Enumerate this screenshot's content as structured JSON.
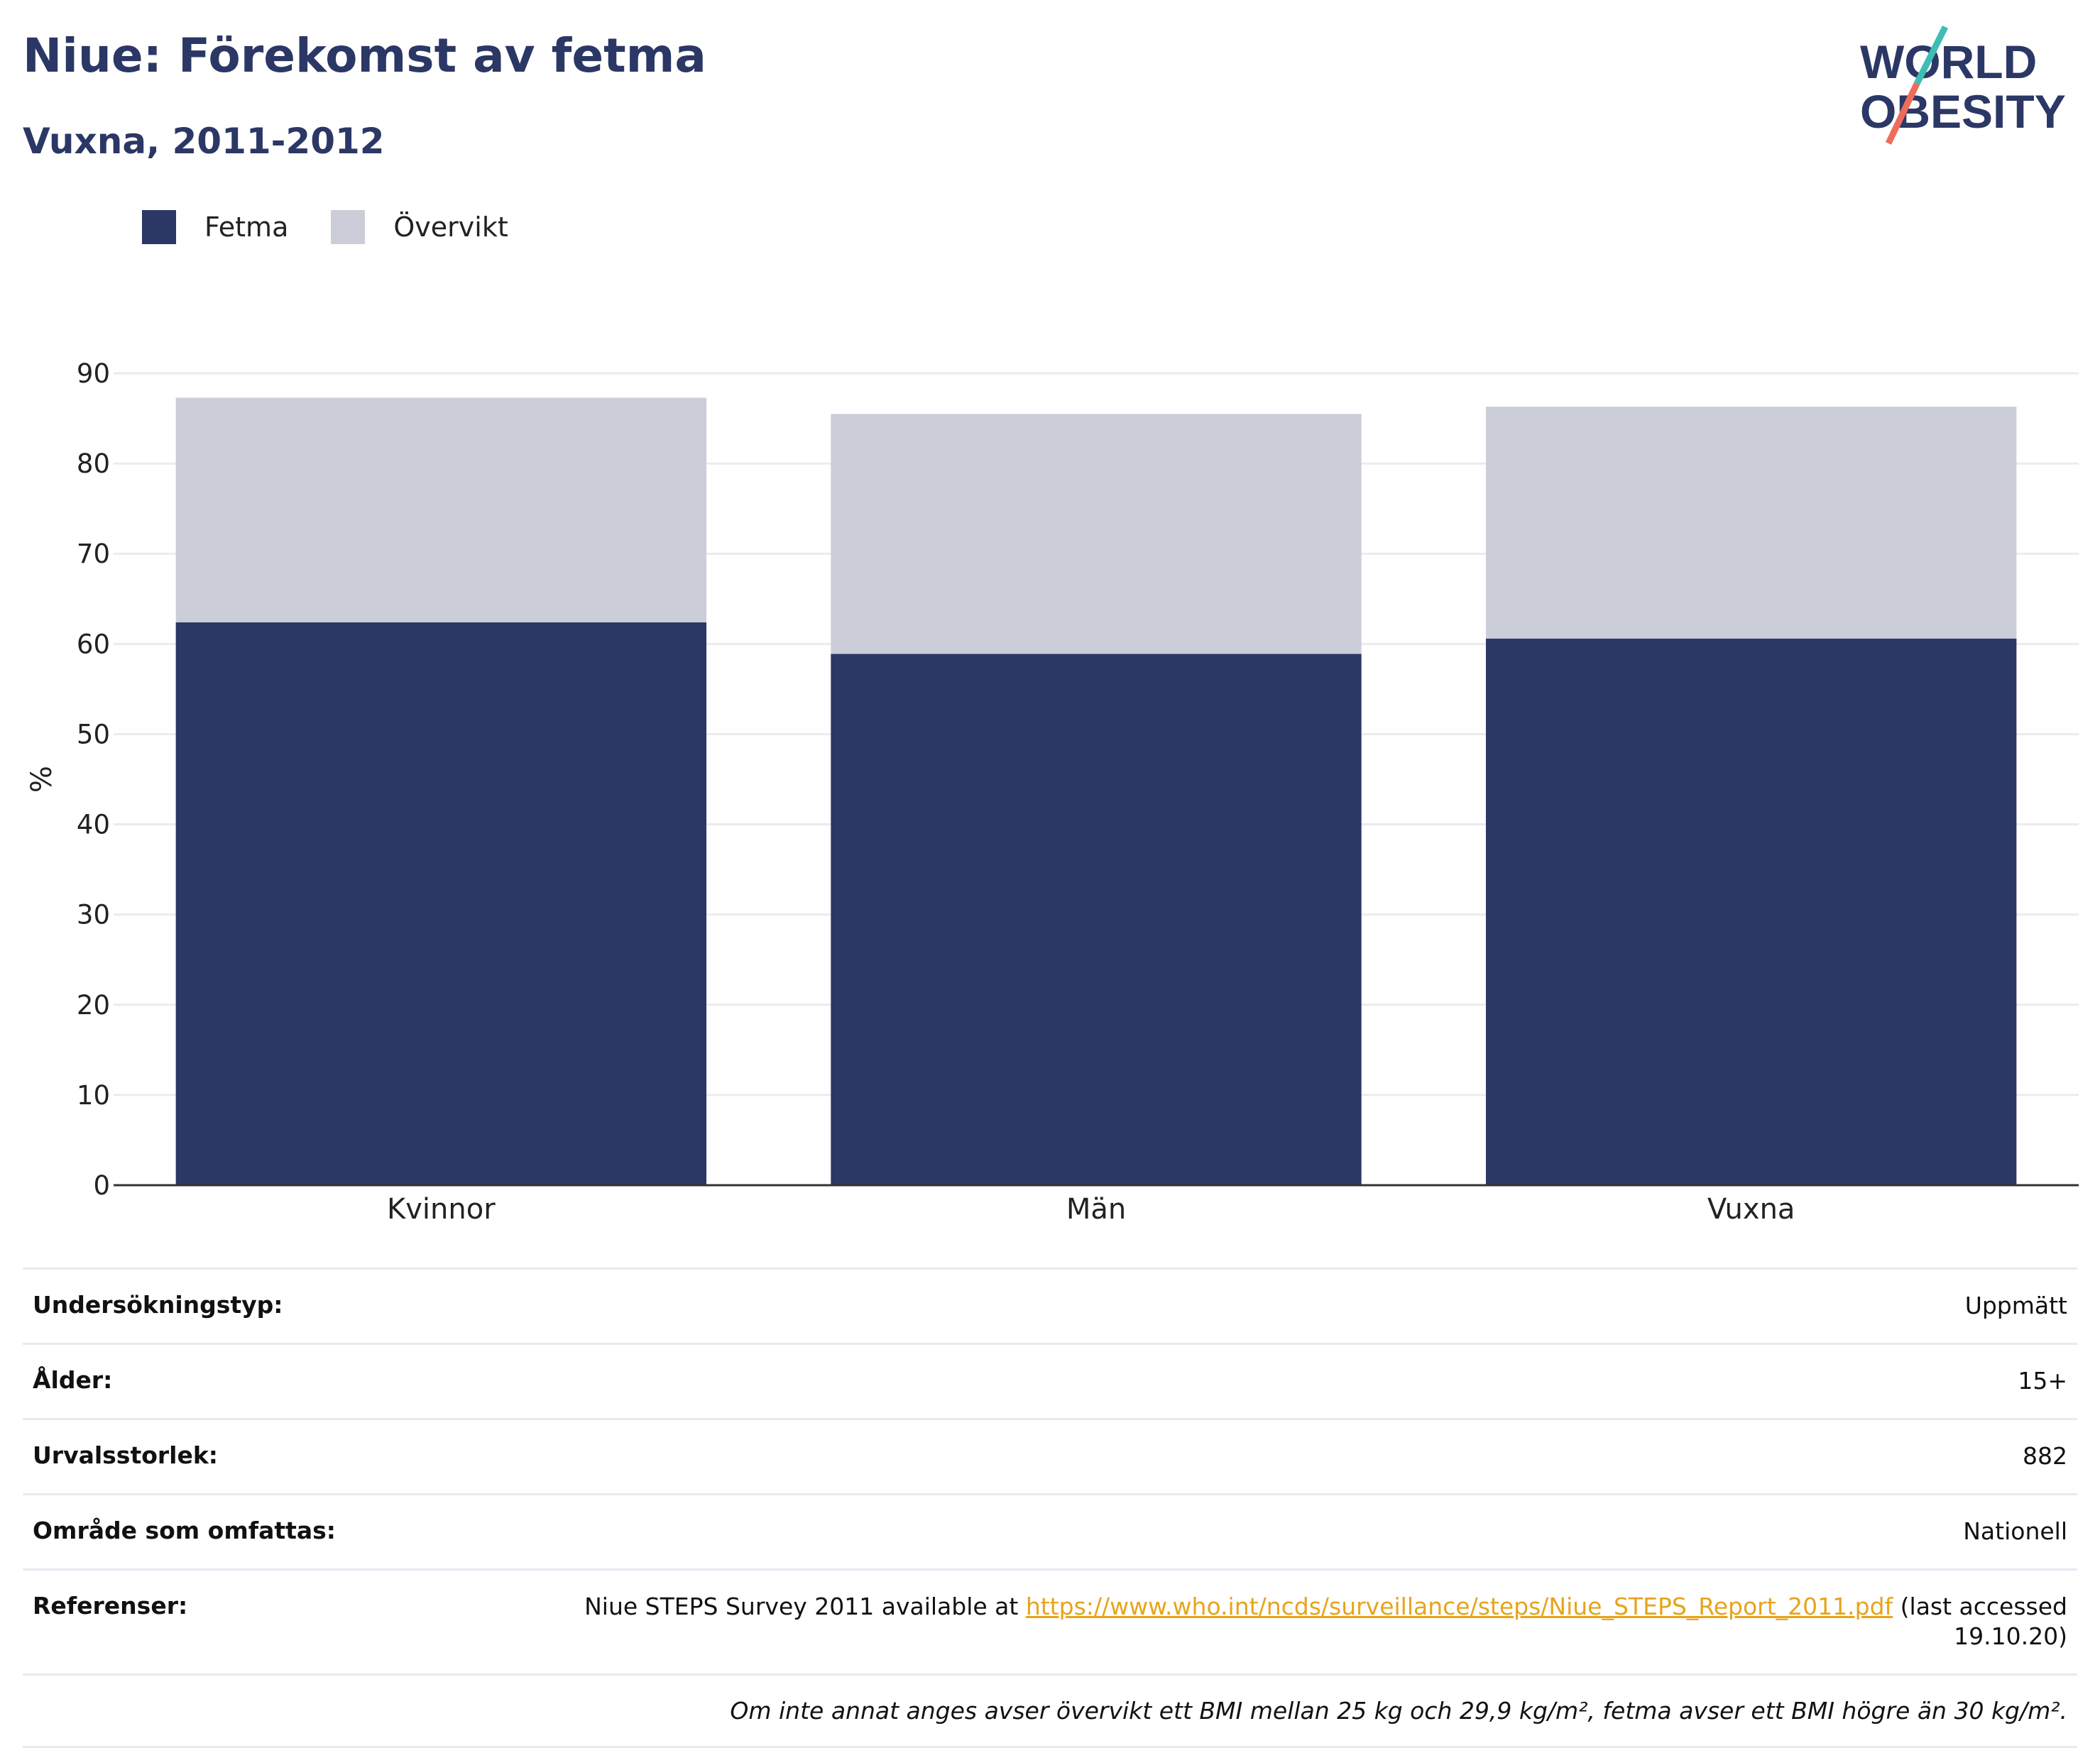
{
  "title": "Niue: Förekomst av fetma",
  "subtitle": "Vuxna, 2011-2012",
  "logo": {
    "line1": "WORLD",
    "line2": "OBESITY"
  },
  "colors": {
    "fetma": "#2b3765",
    "overvikt": "#cbcdd9",
    "accent_teal": "#3fbcb5",
    "accent_coral": "#ef6b5a",
    "link": "#e7a41a"
  },
  "legend": [
    {
      "label": "Fetma",
      "color": "#2b3765"
    },
    {
      "label": "Övervikt",
      "color": "#cbcdd9"
    }
  ],
  "chart_data": {
    "type": "bar",
    "stacked": true,
    "categories": [
      "Kvinnor",
      "Män",
      "Vuxna"
    ],
    "series": [
      {
        "name": "Fetma",
        "values": [
          62.4,
          58.9,
          60.6
        ]
      },
      {
        "name": "Övervikt",
        "values": [
          24.9,
          26.6,
          25.7
        ]
      }
    ],
    "ylabel": "%",
    "xlabel": "",
    "ylim": [
      0,
      90
    ],
    "yticks": [
      0,
      10,
      20,
      30,
      40,
      50,
      60,
      70,
      80,
      90
    ],
    "grid": true
  },
  "info": {
    "rows": [
      {
        "key": "Undersökningstyp:",
        "value": "Uppmätt"
      },
      {
        "key": "Ålder:",
        "value": "15+"
      },
      {
        "key": "Urvalsstorlek:",
        "value": "882"
      },
      {
        "key": "Område som omfattas:",
        "value": "Nationell"
      }
    ],
    "references": {
      "key": "Referenser:",
      "prefix": "Niue STEPS Survey 2011 available at ",
      "link": "https://www.who.int/ncds/surveillance/steps/Niue_STEPS_Report_2011.pdf",
      "suffix": " (last accessed 19.10.20)"
    },
    "note": "Om inte annat anges avser övervikt ett BMI mellan 25 kg och 29,9 kg/m², fetma avser ett BMI högre än 30 kg/m²."
  }
}
